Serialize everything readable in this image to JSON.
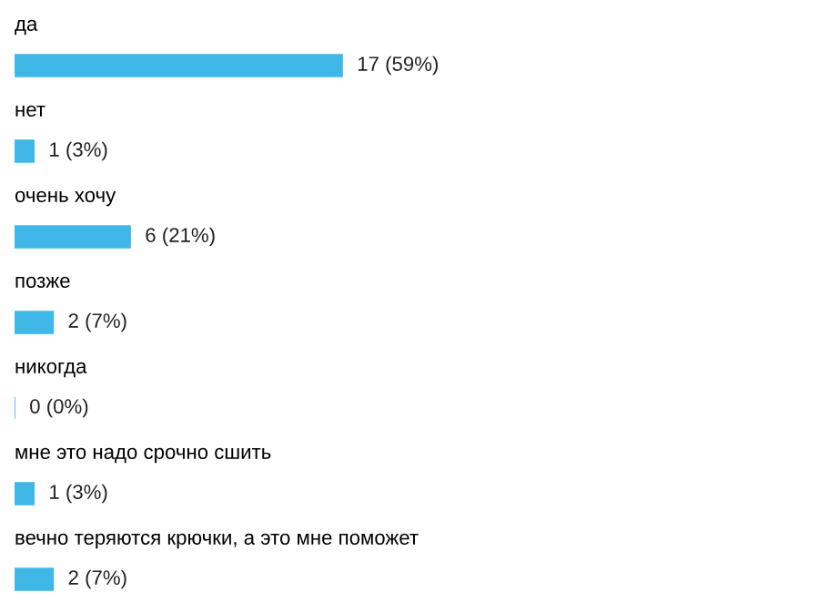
{
  "chart_data": {
    "type": "bar",
    "orientation": "horizontal",
    "categories": [
      "да",
      "нет",
      "очень хочу",
      "позже",
      "никогда",
      "мне это надо срочно сшить",
      "вечно теряются крючки, а это мне поможет"
    ],
    "values": [
      17,
      1,
      6,
      2,
      0,
      1,
      2
    ],
    "value_labels": [
      "17 (59%)",
      "1 (3%)",
      "6 (21%)",
      "2 (7%)",
      "0 (0%)",
      "1 (3%)",
      "2 (7%)"
    ],
    "color": "#3fb8e8"
  }
}
